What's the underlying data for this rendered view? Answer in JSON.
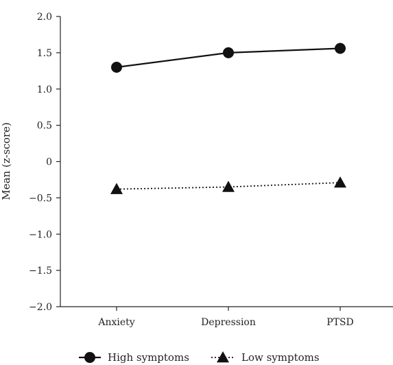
{
  "chart_data": {
    "type": "line",
    "categories": [
      "Anxiety",
      "Depression",
      "PTSD"
    ],
    "ylabel": "Mean (z-score)",
    "ylim": [
      -2.0,
      2.0
    ],
    "yticks": [
      2.0,
      1.5,
      1.0,
      0.5,
      0,
      -0.5,
      -1.0,
      -1.5,
      -2.0
    ],
    "ytick_labels": [
      "2.0",
      "1.5",
      "1.0",
      "0.5",
      "0",
      "−0.5",
      "−1.0",
      "−1.5",
      "−2.0"
    ],
    "grid": false,
    "legend_position": "bottom-center",
    "series": [
      {
        "name": "High symptoms",
        "values": [
          1.3,
          1.5,
          1.56
        ],
        "marker": "circle",
        "line_style": "solid",
        "color": "#111111"
      },
      {
        "name": "Low symptoms",
        "values": [
          -0.38,
          -0.35,
          -0.29
        ],
        "marker": "triangle",
        "line_style": "dotted",
        "color": "#111111"
      }
    ]
  }
}
